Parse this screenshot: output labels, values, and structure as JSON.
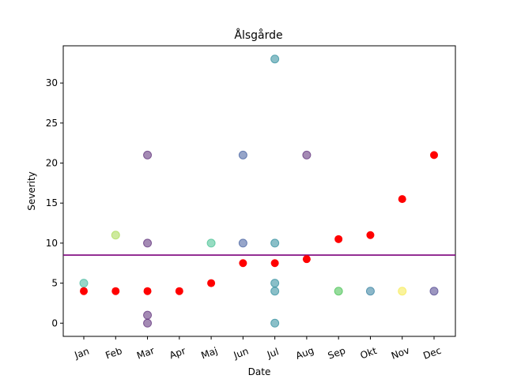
{
  "chart_data": {
    "type": "scatter",
    "title": "Ålsgårde",
    "xlabel": "Date",
    "ylabel": "Severity",
    "categories": [
      "Jan",
      "Feb",
      "Mar",
      "Apr",
      "Maj",
      "Jun",
      "Jul",
      "Aug",
      "Sep",
      "Okt",
      "Nov",
      "Dec"
    ],
    "ylim": [
      -1.65,
      34.65
    ],
    "yticks": [
      0,
      5,
      10,
      15,
      20,
      25,
      30
    ],
    "grid": false,
    "legend": "none",
    "reference_line": {
      "y": 8.5,
      "color": "#7b007b"
    },
    "series": [
      {
        "style": "colored-translucent",
        "points": [
          {
            "x": "Jan",
            "y": 5,
            "color": "#3fb59a"
          },
          {
            "x": "Feb",
            "y": 11,
            "color": "#a6d94e"
          },
          {
            "x": "Mar",
            "y": 21,
            "color": "#5a2a76"
          },
          {
            "x": "Mar",
            "y": 10,
            "color": "#5a2a76"
          },
          {
            "x": "Mar",
            "y": 1,
            "color": "#5a2a76"
          },
          {
            "x": "Mar",
            "y": 0,
            "color": "#5a2a76"
          },
          {
            "x": "Maj",
            "y": 10,
            "color": "#40bf8f"
          },
          {
            "x": "Jun",
            "y": 21,
            "color": "#3f5b9c"
          },
          {
            "x": "Jun",
            "y": 10,
            "color": "#3f5b9c"
          },
          {
            "x": "Jul",
            "y": 33,
            "color": "#2a8a9a"
          },
          {
            "x": "Jul",
            "y": 10,
            "color": "#2a8a9a"
          },
          {
            "x": "Jul",
            "y": 5,
            "color": "#2a8a9a"
          },
          {
            "x": "Jul",
            "y": 4,
            "color": "#2a8a9a"
          },
          {
            "x": "Jul",
            "y": 0,
            "color": "#2a8a9a"
          },
          {
            "x": "Aug",
            "y": 21,
            "color": "#5a2a76"
          },
          {
            "x": "Sep",
            "y": 4,
            "color": "#3fbf4a"
          },
          {
            "x": "Okt",
            "y": 4,
            "color": "#2e7c9c"
          },
          {
            "x": "Nov",
            "y": 4,
            "color": "#f5e94a"
          },
          {
            "x": "Dec",
            "y": 4,
            "color": "#4a3f8c"
          }
        ]
      },
      {
        "style": "solid",
        "color": "#ff0000",
        "points": [
          {
            "x": "Jan",
            "y": 4
          },
          {
            "x": "Feb",
            "y": 4
          },
          {
            "x": "Mar",
            "y": 4
          },
          {
            "x": "Apr",
            "y": 4
          },
          {
            "x": "Maj",
            "y": 5
          },
          {
            "x": "Jun",
            "y": 7.5
          },
          {
            "x": "Jul",
            "y": 7.5
          },
          {
            "x": "Aug",
            "y": 8
          },
          {
            "x": "Sep",
            "y": 10.5
          },
          {
            "x": "Okt",
            "y": 11
          },
          {
            "x": "Nov",
            "y": 15.5
          },
          {
            "x": "Dec",
            "y": 21
          }
        ]
      }
    ]
  }
}
